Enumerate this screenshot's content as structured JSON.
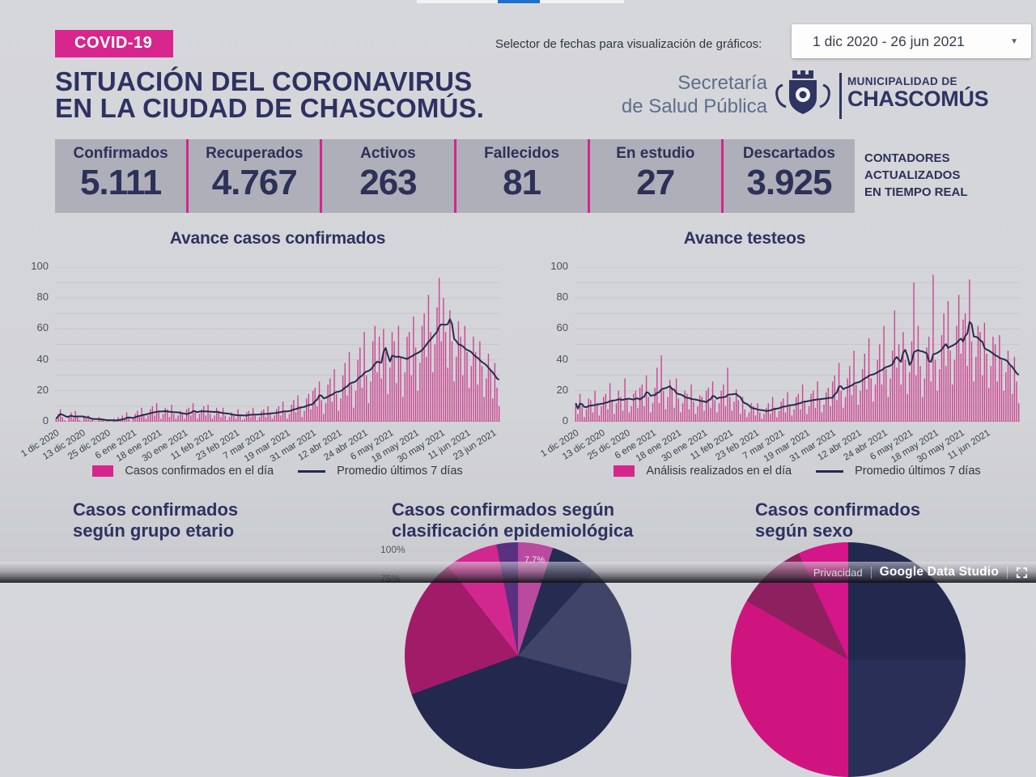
{
  "colors": {
    "accent_magenta": "#d5268c",
    "navy": "#2e3261",
    "bar_pink": "#cc4490",
    "line_navy": "#272b4d",
    "progress_blue": "#1d6fd2",
    "counters_bg": "#aeafb9",
    "page_bg": "#d3d4d8"
  },
  "header": {
    "badge": "COVID-19",
    "title_line1": "SITUACIÓN DEL CORONAVIRUS",
    "title_line2": "EN LA CIUDAD DE CHASCOMÚS.",
    "date_selector_label": "Selector de fechas para visualización de gráficos:",
    "date_range": "1 dic 2020 - 26 jun 2021",
    "caret": "▼",
    "org_line1": "Secretaría",
    "org_line2": "de Salud Pública",
    "muni_line1": "MUNICIPALIDAD DE",
    "muni_line2": "CHASCOMÚS"
  },
  "counters": {
    "items": [
      {
        "label": "Confirmados",
        "value": "5.111"
      },
      {
        "label": "Recuperados",
        "value": "4.767"
      },
      {
        "label": "Activos",
        "value": "263"
      },
      {
        "label": "Fallecidos",
        "value": "81"
      },
      {
        "label": "En estudio",
        "value": "27"
      },
      {
        "label": "Descartados",
        "value": "3.925"
      }
    ],
    "note_line1": "CONTADORES",
    "note_line2": "ACTUALIZADOS",
    "note_line3": "EN TIEMPO REAL"
  },
  "chart_data": [
    {
      "type": "bar",
      "subtype": "daily bars + 7-day moving average line",
      "title": "Avance casos confirmados",
      "date_start": "1 dic 2020",
      "date_end": "26 jun 2021",
      "ylim": [
        0,
        100
      ],
      "y_ticks": [
        0,
        20,
        40,
        60,
        80,
        100
      ],
      "grid": "on",
      "x_tick_labels": [
        "1 dic 2020",
        "13 dic 2020",
        "25 dic 2020",
        "6 ene 2021",
        "18 ene 2021",
        "30 ene 2021",
        "11 feb 2021",
        "23 feb 2021",
        "7 mar 2021",
        "19 mar 2021",
        "31 mar 2021",
        "12 abr 2021",
        "24 abr 2021",
        "6 may 2021",
        "18 may 2021",
        "30 may 2021",
        "11 jun 2021",
        "23 jun 2021"
      ],
      "x_tick_days": [
        0,
        12,
        24,
        36,
        48,
        60,
        72,
        84,
        96,
        108,
        120,
        132,
        144,
        156,
        168,
        180,
        192,
        204
      ],
      "values": [
        2,
        5,
        8,
        3,
        1,
        0,
        4,
        6,
        2,
        7,
        4,
        1,
        0,
        3,
        2,
        4,
        1,
        2,
        0,
        0,
        3,
        1,
        2,
        0,
        1,
        0,
        0,
        2,
        1,
        3,
        1,
        4,
        1,
        6,
        3,
        0,
        2,
        5,
        7,
        3,
        9,
        5,
        2,
        4,
        8,
        10,
        4,
        12,
        6,
        2,
        5,
        9,
        8,
        3,
        11,
        5,
        2,
        4,
        7,
        6,
        2,
        8,
        9,
        4,
        12,
        6,
        2,
        5,
        8,
        10,
        4,
        11,
        5,
        2,
        4,
        9,
        7,
        3,
        9,
        4,
        1,
        3,
        6,
        5,
        2,
        8,
        4,
        1,
        2,
        6,
        7,
        3,
        9,
        4,
        1,
        3,
        7,
        8,
        3,
        10,
        5,
        2,
        4,
        8,
        10,
        4,
        13,
        6,
        2,
        5,
        11,
        14,
        6,
        17,
        9,
        3,
        7,
        15,
        18,
        8,
        20,
        22,
        10,
        26,
        14,
        5,
        12,
        24,
        28,
        13,
        34,
        18,
        7,
        15,
        30,
        38,
        17,
        45,
        24,
        9,
        20,
        40,
        48,
        22,
        58,
        30,
        12,
        26,
        52,
        62,
        32,
        55,
        28,
        60,
        45,
        18,
        35,
        58,
        52,
        25,
        62,
        42,
        16,
        32,
        55,
        58,
        30,
        68,
        48,
        20,
        38,
        62,
        70,
        42,
        82,
        58,
        32,
        50,
        74,
        93,
        52,
        80,
        58,
        35,
        72,
        52,
        26,
        42,
        65,
        55,
        30,
        62,
        45,
        22,
        36,
        55,
        45,
        24,
        52,
        36,
        16,
        28,
        44,
        33,
        15,
        38,
        22,
        10
      ],
      "line": {
        "name": "Promedio últimos 7 días",
        "derivation": "trailing 7-day average of daily values"
      },
      "legend": [
        {
          "label": "Casos confirmados en el día",
          "color": "#d5268c"
        },
        {
          "label": "Promedio últimos 7 días",
          "color": "#272b4d"
        }
      ],
      "colors": {
        "bar": "#cc4490",
        "line": "#272b4d"
      }
    },
    {
      "type": "bar",
      "subtype": "daily bars + 7-day moving average line",
      "title": "Avance testeos",
      "date_start": "1 dic 2020",
      "date_end": "26 jun 2021",
      "ylim": [
        0,
        100
      ],
      "y_ticks": [
        0,
        20,
        40,
        60,
        80,
        100
      ],
      "grid": "on",
      "x_tick_labels": [
        "1 dic 2020",
        "13 dic 2020",
        "25 dic 2020",
        "6 ene 2021",
        "18 ene 2021",
        "30 ene 2021",
        "11 feb 2021",
        "23 feb 2021",
        "7 mar 2021",
        "19 mar 2021",
        "31 mar 2021",
        "12 abr 2021",
        "24 abr 2021",
        "6 may 2021",
        "18 may 2021",
        "30 may 2021",
        "11 jun 2021"
      ],
      "x_tick_days": [
        0,
        12,
        24,
        36,
        48,
        60,
        72,
        84,
        96,
        108,
        120,
        132,
        144,
        156,
        168,
        180,
        192
      ],
      "values": [
        12,
        5,
        18,
        10,
        3,
        8,
        15,
        14,
        6,
        20,
        12,
        4,
        10,
        16,
        18,
        8,
        25,
        14,
        5,
        12,
        20,
        16,
        7,
        28,
        15,
        6,
        10,
        18,
        20,
        9,
        22,
        24,
        10,
        30,
        16,
        6,
        12,
        22,
        35,
        12,
        43,
        20,
        8,
        16,
        27,
        22,
        9,
        28,
        15,
        6,
        12,
        20,
        18,
        8,
        24,
        13,
        5,
        10,
        17,
        16,
        7,
        20,
        22,
        9,
        26,
        14,
        6,
        12,
        20,
        24,
        10,
        35,
        16,
        7,
        13,
        21,
        14,
        5,
        16,
        8,
        3,
        6,
        12,
        10,
        4,
        12,
        6,
        2,
        5,
        9,
        12,
        5,
        16,
        9,
        3,
        7,
        13,
        15,
        6,
        19,
        11,
        4,
        8,
        16,
        18,
        8,
        24,
        13,
        5,
        10,
        18,
        20,
        9,
        26,
        14,
        6,
        11,
        19,
        22,
        10,
        26,
        30,
        14,
        38,
        20,
        9,
        16,
        28,
        36,
        17,
        46,
        24,
        11,
        20,
        34,
        44,
        21,
        54,
        28,
        13,
        24,
        40,
        50,
        24,
        62,
        34,
        16,
        28,
        46,
        72,
        35,
        50,
        24,
        58,
        40,
        18,
        32,
        52,
        90,
        30,
        62,
        36,
        16,
        28,
        48,
        55,
        26,
        95,
        40,
        20,
        34,
        56,
        70,
        36,
        78,
        46,
        24,
        40,
        62,
        82,
        44,
        66,
        70,
        36,
        92,
        52,
        26,
        42,
        62,
        58,
        30,
        64,
        44,
        22,
        36,
        55,
        50,
        26,
        56,
        40,
        20,
        32,
        46,
        36,
        18,
        42,
        26,
        12
      ],
      "line": {
        "name": "Promedio últimos 7 días",
        "derivation": "trailing 7-day average of daily values"
      },
      "legend": [
        {
          "label": "Análisis realizados en el día",
          "color": "#d5268c"
        },
        {
          "label": "Promedio últimos 7 días",
          "color": "#272b4d"
        }
      ],
      "colors": {
        "bar": "#cc4490",
        "line": "#272b4d"
      }
    },
    {
      "type": "bar",
      "title_line1": "Casos confirmados",
      "title_line2": "según grupo etario",
      "note": "chart body not visible in screenshot (cut off at bottom edge)"
    },
    {
      "type": "pie",
      "title_line1": "Casos confirmados según",
      "title_line2": "clasificación epidemiológica",
      "visible_label": "7,7%",
      "axis_labels_visible": [
        "100%",
        "75%"
      ],
      "segments": [
        {
          "color": "#b94a9e",
          "from": 0,
          "to": 18
        },
        {
          "color": "#262b52",
          "from": 18,
          "to": 42
        },
        {
          "color": "#3f4468",
          "from": 42,
          "to": 105
        },
        {
          "color": "#23284e",
          "from": 105,
          "to": 250
        },
        {
          "color": "#a11b69",
          "from": 250,
          "to": 322
        },
        {
          "color": "#d1288f",
          "from": 322,
          "to": 349
        },
        {
          "color": "#5a3080",
          "from": 349,
          "to": 360
        }
      ],
      "note": "only top arc of pie visible; one slice labeled 7,7%"
    },
    {
      "type": "pie",
      "title_line1": "Casos confirmados",
      "title_line2": "según sexo",
      "segments": [
        {
          "color": "#23284e",
          "from": 0,
          "to": 90
        },
        {
          "color": "#2a2f57",
          "from": 90,
          "to": 180
        },
        {
          "color": "#cf1480",
          "from": 180,
          "to": 300
        },
        {
          "color": "#8e205f",
          "from": 300,
          "to": 335
        },
        {
          "color": "#d5158a",
          "from": 335,
          "to": 360
        }
      ],
      "note": "only top arc of pie visible; magenta left half, navy right half"
    }
  ],
  "footer": {
    "privacy": "Privacidad",
    "brand": "Google Data Studio"
  }
}
